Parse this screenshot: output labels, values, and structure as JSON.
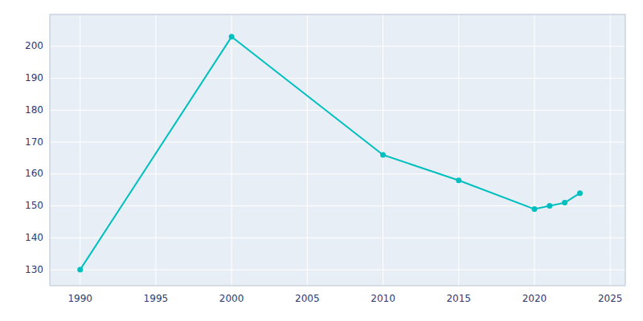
{
  "chart_data": {
    "type": "line",
    "x": [
      1990,
      2000,
      2010,
      2015,
      2020,
      2021,
      2022,
      2023
    ],
    "values": [
      130,
      203,
      166,
      158,
      149,
      150,
      151,
      154
    ],
    "color": "#00BFBF",
    "marker": "circle",
    "xlim": [
      1988,
      2026
    ],
    "ylim": [
      125,
      210
    ],
    "xticks": [
      1990,
      1995,
      2000,
      2005,
      2010,
      2015,
      2020,
      2025
    ],
    "yticks": [
      130,
      140,
      150,
      160,
      170,
      180,
      190,
      200
    ],
    "grid": true
  }
}
